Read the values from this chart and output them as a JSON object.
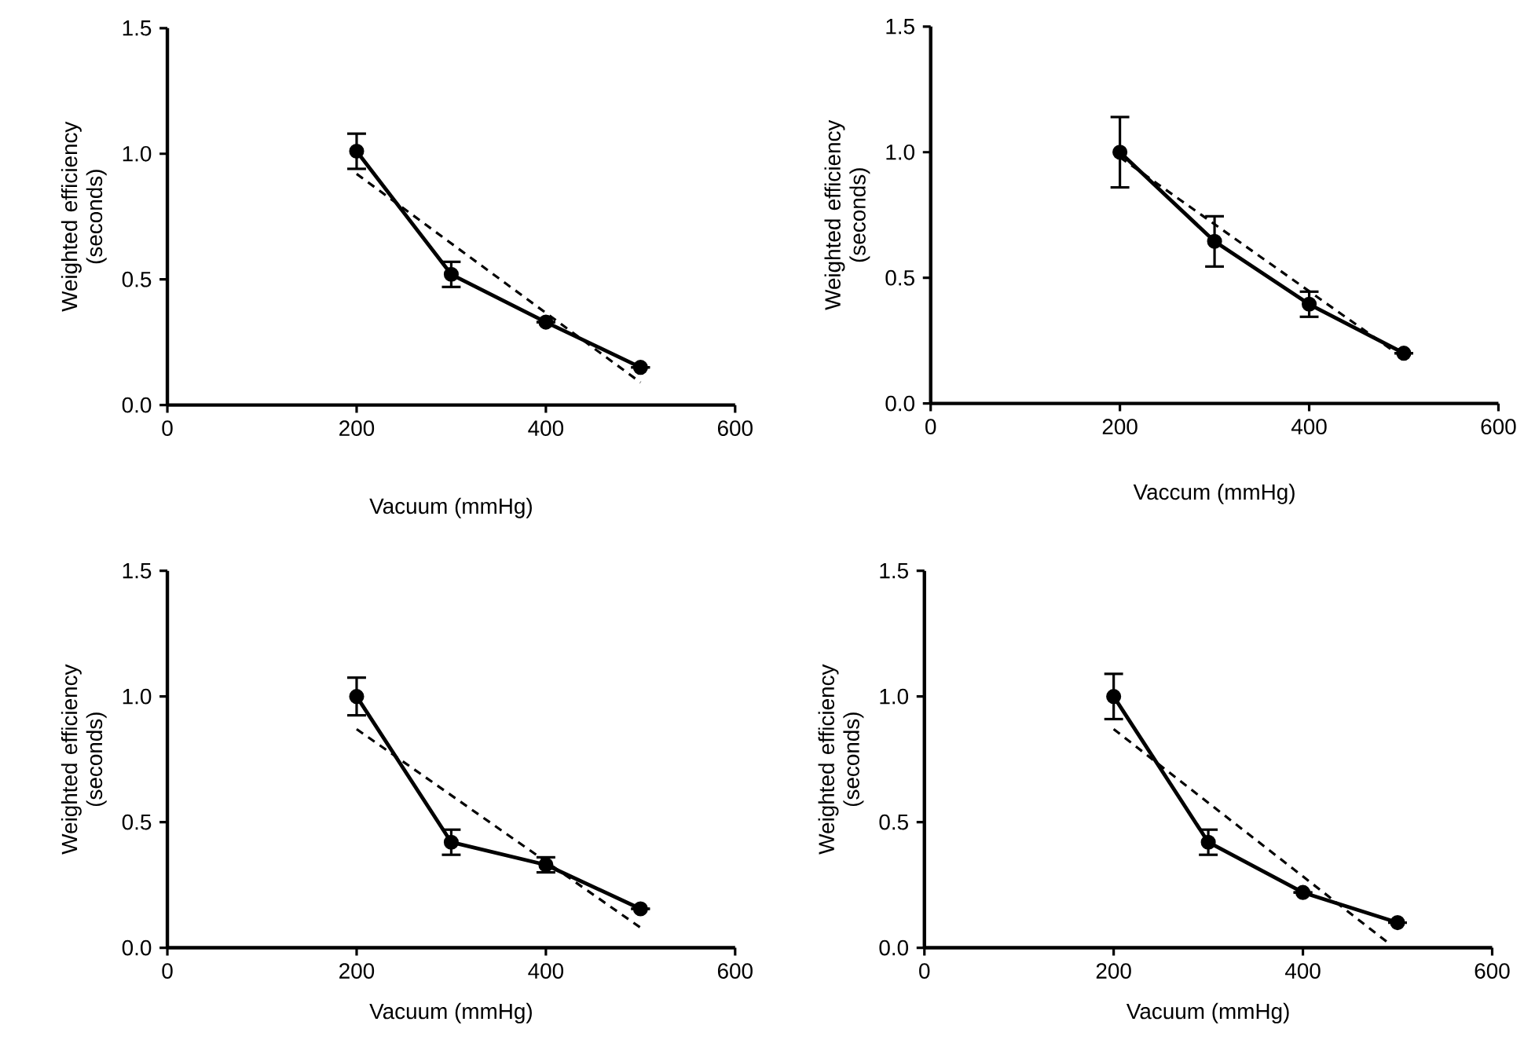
{
  "chart_data": [
    {
      "type": "line",
      "xlabel": "Vacuum (mmHg)",
      "ylabel": "Weighted efficiency (seconds)",
      "x": [
        200,
        300,
        400,
        500
      ],
      "xlim": [
        0,
        600
      ],
      "ylim": [
        0,
        1.5
      ],
      "xticks": [
        0,
        200,
        400,
        600
      ],
      "yticks": [
        {
          "value": 0,
          "label": "0.0"
        },
        {
          "value": 0.5,
          "label": "0.5"
        },
        {
          "value": 1,
          "label": "1.0"
        },
        {
          "value": 1.5,
          "label": "1.5"
        }
      ],
      "marker": "circle",
      "series": [
        {
          "color": "#000000",
          "values": [
            1.01,
            0.52,
            0.33,
            0.15
          ],
          "errors": [
            0.07,
            0.05,
            null,
            null
          ]
        },
        {
          "type": "line",
          "x": [
            200,
            500
          ],
          "color": "#000000",
          "values": [
            0.92,
            0.09
          ],
          "line_style": "dashed",
          "marker": "none"
        }
      ]
    },
    {
      "type": "line",
      "xlabel": "Vaccum (mmHg)",
      "ylabel": "Weighted efficiency (seconds)",
      "x": [
        200,
        300,
        400,
        500
      ],
      "xlim": [
        0,
        600
      ],
      "ylim": [
        0,
        1.5
      ],
      "xticks": [
        0,
        200,
        400,
        600
      ],
      "yticks": [
        {
          "value": 0,
          "label": "0.0"
        },
        {
          "value": 0.5,
          "label": "0.5"
        },
        {
          "value": 1,
          "label": "1.0"
        },
        {
          "value": 1.5,
          "label": "1.5"
        }
      ],
      "marker": "circle",
      "series": [
        {
          "color": "#000000",
          "values": [
            1.0,
            0.645,
            0.395,
            0.2
          ],
          "errors": [
            0.14,
            0.1,
            0.05,
            null
          ]
        },
        {
          "type": "line",
          "x": [
            200,
            500
          ],
          "color": "#000000",
          "values": [
            0.98,
            0.18
          ],
          "line_style": "dashed",
          "marker": "none"
        }
      ]
    },
    {
      "type": "line",
      "xlabel": "Vacuum (mmHg)",
      "ylabel": "Weighted efficiency (seconds)",
      "x": [
        200,
        300,
        400,
        500
      ],
      "xlim": [
        0,
        600
      ],
      "ylim": [
        0,
        1.5
      ],
      "xticks": [
        0,
        200,
        400,
        600
      ],
      "yticks": [
        {
          "value": 0,
          "label": "0.0"
        },
        {
          "value": 0.5,
          "label": "0.5"
        },
        {
          "value": 1,
          "label": "1.0"
        },
        {
          "value": 1.5,
          "label": "1.5"
        }
      ],
      "marker": "circle",
      "series": [
        {
          "color": "#000000",
          "values": [
            1.0,
            0.42,
            0.33,
            0.155
          ],
          "errors": [
            0.075,
            0.05,
            0.03,
            null
          ]
        },
        {
          "type": "line",
          "x": [
            200,
            500
          ],
          "color": "#000000",
          "values": [
            0.87,
            0.08
          ],
          "line_style": "dashed",
          "marker": "none"
        }
      ]
    },
    {
      "type": "line",
      "xlabel": "Vacuum (mmHg)",
      "ylabel": "Weighted efficiency (seconds)",
      "x": [
        200,
        300,
        400,
        500
      ],
      "xlim": [
        0,
        600
      ],
      "ylim": [
        0,
        1.5
      ],
      "xticks": [
        0,
        200,
        400,
        600
      ],
      "yticks": [
        {
          "value": 0,
          "label": "0.0"
        },
        {
          "value": 0.5,
          "label": "0.5"
        },
        {
          "value": 1,
          "label": "1.0"
        },
        {
          "value": 1.5,
          "label": "1.5"
        }
      ],
      "marker": "circle",
      "series": [
        {
          "color": "#000000",
          "values": [
            1.0,
            0.42,
            0.22,
            0.1
          ],
          "errors": [
            0.09,
            0.05,
            null,
            null
          ]
        },
        {
          "type": "line",
          "x": [
            200,
            490
          ],
          "color": "#000000",
          "values": [
            0.87,
            0.02
          ],
          "line_style": "dashed",
          "marker": "none"
        }
      ]
    }
  ]
}
